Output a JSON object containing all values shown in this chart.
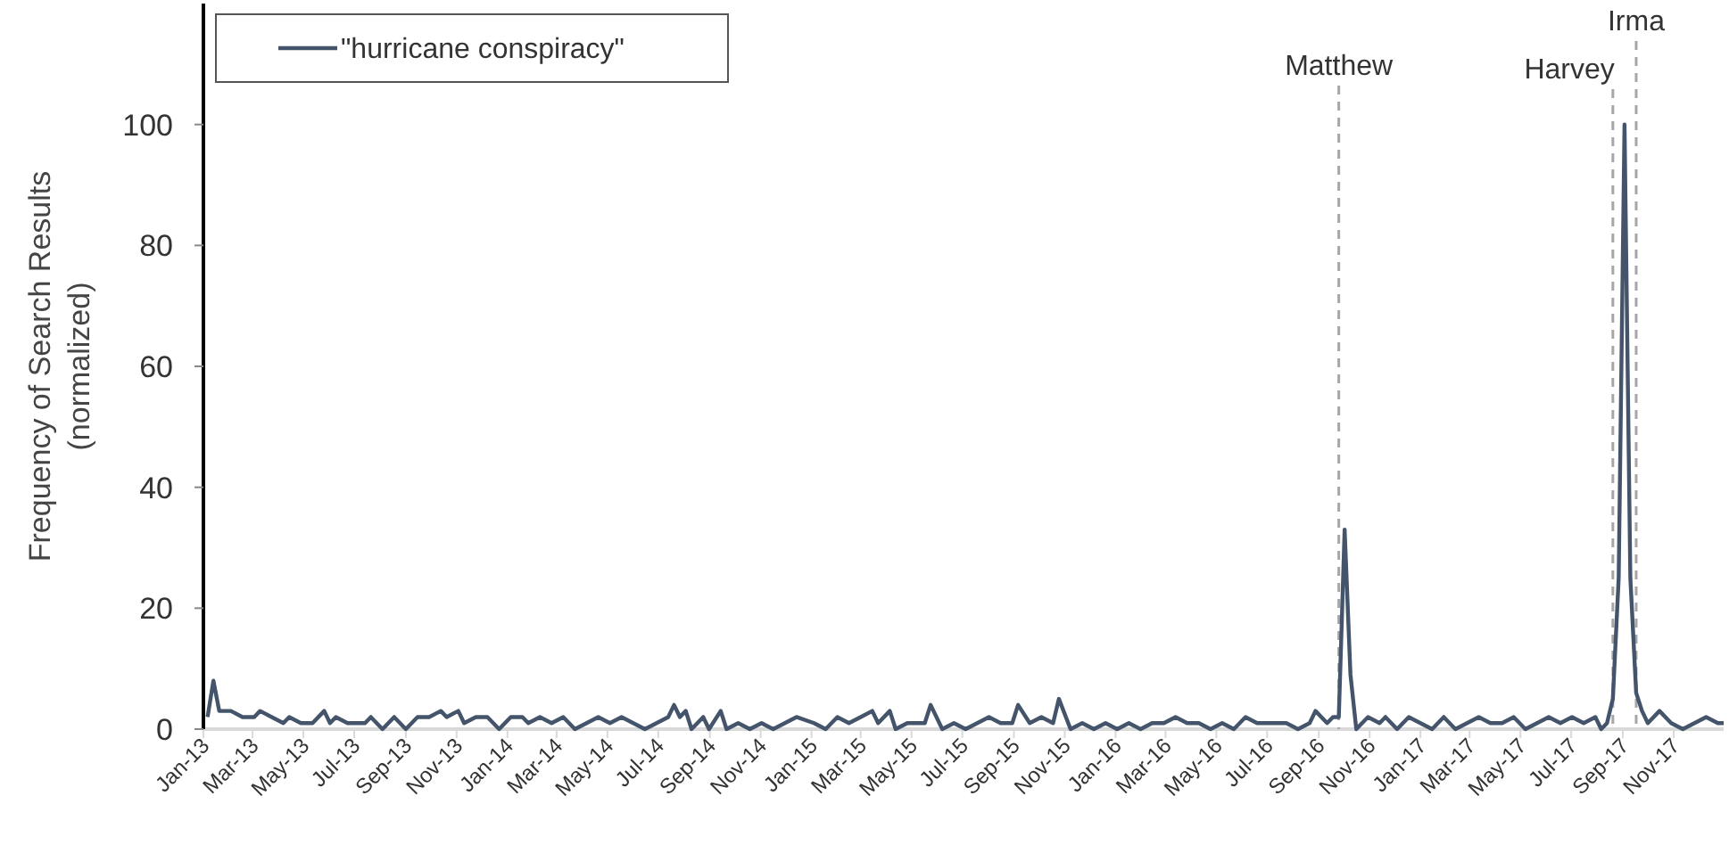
{
  "chart_data": {
    "type": "line",
    "ylabel": "Frequency of Search Results\n(normalized)",
    "x": [
      "2013-01-06",
      "2013-01-13",
      "2013-01-20",
      "2013-02-03",
      "2013-02-17",
      "2013-03-03",
      "2013-03-10",
      "2013-03-24",
      "2013-04-07",
      "2013-04-14",
      "2013-04-28",
      "2013-05-12",
      "2013-05-26",
      "2013-06-02",
      "2013-06-09",
      "2013-06-23",
      "2013-07-14",
      "2013-07-21",
      "2013-08-04",
      "2013-08-18",
      "2013-09-01",
      "2013-09-15",
      "2013-09-29",
      "2013-10-13",
      "2013-10-20",
      "2013-11-03",
      "2013-11-10",
      "2013-11-24",
      "2013-12-08",
      "2013-12-22",
      "2014-01-05",
      "2014-01-19",
      "2014-01-26",
      "2014-02-09",
      "2014-02-23",
      "2014-03-09",
      "2014-03-23",
      "2014-04-06",
      "2014-04-20",
      "2014-05-04",
      "2014-05-18",
      "2014-06-01",
      "2014-06-15",
      "2014-06-29",
      "2014-07-13",
      "2014-07-20",
      "2014-07-27",
      "2014-08-03",
      "2014-08-10",
      "2014-08-24",
      "2014-08-31",
      "2014-09-14",
      "2014-09-21",
      "2014-10-05",
      "2014-10-19",
      "2014-11-02",
      "2014-11-16",
      "2014-11-30",
      "2014-12-14",
      "2015-01-04",
      "2015-01-18",
      "2015-02-01",
      "2015-02-15",
      "2015-03-01",
      "2015-03-15",
      "2015-03-22",
      "2015-04-05",
      "2015-04-12",
      "2015-04-26",
      "2015-05-17",
      "2015-05-24",
      "2015-06-07",
      "2015-06-21",
      "2015-07-05",
      "2015-07-19",
      "2015-08-02",
      "2015-08-16",
      "2015-08-30",
      "2015-09-06",
      "2015-09-20",
      "2015-10-04",
      "2015-10-18",
      "2015-10-25",
      "2015-11-08",
      "2015-11-22",
      "2015-12-06",
      "2015-12-20",
      "2016-01-03",
      "2016-01-17",
      "2016-01-31",
      "2016-02-14",
      "2016-02-28",
      "2016-03-13",
      "2016-03-27",
      "2016-04-10",
      "2016-04-24",
      "2016-05-08",
      "2016-05-22",
      "2016-06-05",
      "2016-06-19",
      "2016-07-03",
      "2016-07-24",
      "2016-08-07",
      "2016-08-21",
      "2016-08-28",
      "2016-09-11",
      "2016-09-18",
      "2016-09-25",
      "2016-10-02",
      "2016-10-09",
      "2016-10-16",
      "2016-10-30",
      "2016-11-13",
      "2016-11-20",
      "2016-12-04",
      "2016-12-18",
      "2017-01-01",
      "2017-01-15",
      "2017-01-29",
      "2017-02-12",
      "2017-02-26",
      "2017-03-12",
      "2017-03-26",
      "2017-04-09",
      "2017-04-23",
      "2017-05-07",
      "2017-05-21",
      "2017-06-04",
      "2017-06-18",
      "2017-07-02",
      "2017-07-16",
      "2017-07-30",
      "2017-08-06",
      "2017-08-13",
      "2017-08-20",
      "2017-08-27",
      "2017-09-03",
      "2017-09-10",
      "2017-09-17",
      "2017-09-24",
      "2017-10-01",
      "2017-10-15",
      "2017-10-29",
      "2017-11-12",
      "2017-11-26",
      "2017-12-10",
      "2017-12-24",
      "2017-12-31"
    ],
    "series": [
      {
        "name": "\"hurricane conspiracy\"",
        "color": "#44546a",
        "values": [
          2,
          8,
          3,
          3,
          2,
          2,
          3,
          2,
          1,
          2,
          1,
          1,
          3,
          1,
          2,
          1,
          1,
          2,
          0,
          2,
          0,
          2,
          2,
          3,
          2,
          3,
          1,
          2,
          2,
          0,
          2,
          2,
          1,
          2,
          1,
          2,
          0,
          1,
          2,
          1,
          2,
          1,
          0,
          1,
          2,
          4,
          2,
          3,
          0,
          2,
          0,
          3,
          0,
          1,
          0,
          1,
          0,
          1,
          2,
          1,
          0,
          2,
          1,
          2,
          3,
          1,
          3,
          0,
          1,
          1,
          4,
          0,
          1,
          0,
          1,
          2,
          1,
          1,
          4,
          1,
          2,
          1,
          5,
          0,
          1,
          0,
          1,
          0,
          1,
          0,
          1,
          1,
          2,
          1,
          1,
          0,
          1,
          0,
          2,
          1,
          1,
          1,
          0,
          1,
          3,
          1,
          2,
          2,
          33,
          9,
          0,
          2,
          1,
          2,
          0,
          2,
          1,
          0,
          2,
          0,
          1,
          2,
          1,
          1,
          2,
          0,
          1,
          2,
          1,
          2,
          1,
          2,
          0,
          1,
          5,
          25,
          100,
          25,
          6,
          3,
          1,
          3,
          1,
          0,
          1,
          2,
          1,
          1
        ]
      }
    ],
    "xlim": [
      "2013-01-01",
      "2017-12-31"
    ],
    "xticks": [
      {
        "value": "2013-01-01",
        "label": "Jan-13"
      },
      {
        "value": "2013-03-01",
        "label": "Mar-13"
      },
      {
        "value": "2013-05-01",
        "label": "May-13"
      },
      {
        "value": "2013-07-01",
        "label": "Jul-13"
      },
      {
        "value": "2013-09-01",
        "label": "Sep-13"
      },
      {
        "value": "2013-11-01",
        "label": "Nov-13"
      },
      {
        "value": "2014-01-01",
        "label": "Jan-14"
      },
      {
        "value": "2014-03-01",
        "label": "Mar-14"
      },
      {
        "value": "2014-05-01",
        "label": "May-14"
      },
      {
        "value": "2014-07-01",
        "label": "Jul-14"
      },
      {
        "value": "2014-09-01",
        "label": "Sep-14"
      },
      {
        "value": "2014-11-01",
        "label": "Nov-14"
      },
      {
        "value": "2015-01-01",
        "label": "Jan-15"
      },
      {
        "value": "2015-03-01",
        "label": "Mar-15"
      },
      {
        "value": "2015-05-01",
        "label": "May-15"
      },
      {
        "value": "2015-07-01",
        "label": "Jul-15"
      },
      {
        "value": "2015-09-01",
        "label": "Sep-15"
      },
      {
        "value": "2015-11-01",
        "label": "Nov-15"
      },
      {
        "value": "2016-01-01",
        "label": "Jan-16"
      },
      {
        "value": "2016-03-01",
        "label": "Mar-16"
      },
      {
        "value": "2016-05-01",
        "label": "May-16"
      },
      {
        "value": "2016-07-01",
        "label": "Jul-16"
      },
      {
        "value": "2016-09-01",
        "label": "Sep-16"
      },
      {
        "value": "2016-11-01",
        "label": "Nov-16"
      },
      {
        "value": "2017-01-01",
        "label": "Jan-17"
      },
      {
        "value": "2017-03-01",
        "label": "Mar-17"
      },
      {
        "value": "2017-05-01",
        "label": "May-17"
      },
      {
        "value": "2017-07-01",
        "label": "Jul-17"
      },
      {
        "value": "2017-09-01",
        "label": "Sep-17"
      },
      {
        "value": "2017-11-01",
        "label": "Nov-17"
      }
    ],
    "ylim": [
      0,
      120
    ],
    "yticks": [
      0,
      20,
      40,
      60,
      80,
      100
    ],
    "ref_lines": [
      {
        "axis": "x",
        "value": "2016-09-25",
        "label": "Matthew",
        "color": "#a6a6a6",
        "line_style": "dashed"
      },
      {
        "axis": "x",
        "value": "2017-08-20",
        "label": "Harvey",
        "color": "#a6a6a6",
        "line_style": "dashed"
      },
      {
        "axis": "x",
        "value": "2017-09-17",
        "label": "Irma",
        "color": "#a6a6a6",
        "line_style": "dashed"
      }
    ],
    "grid": false,
    "legend": "top left",
    "marker": "none",
    "line_style": "solid"
  }
}
